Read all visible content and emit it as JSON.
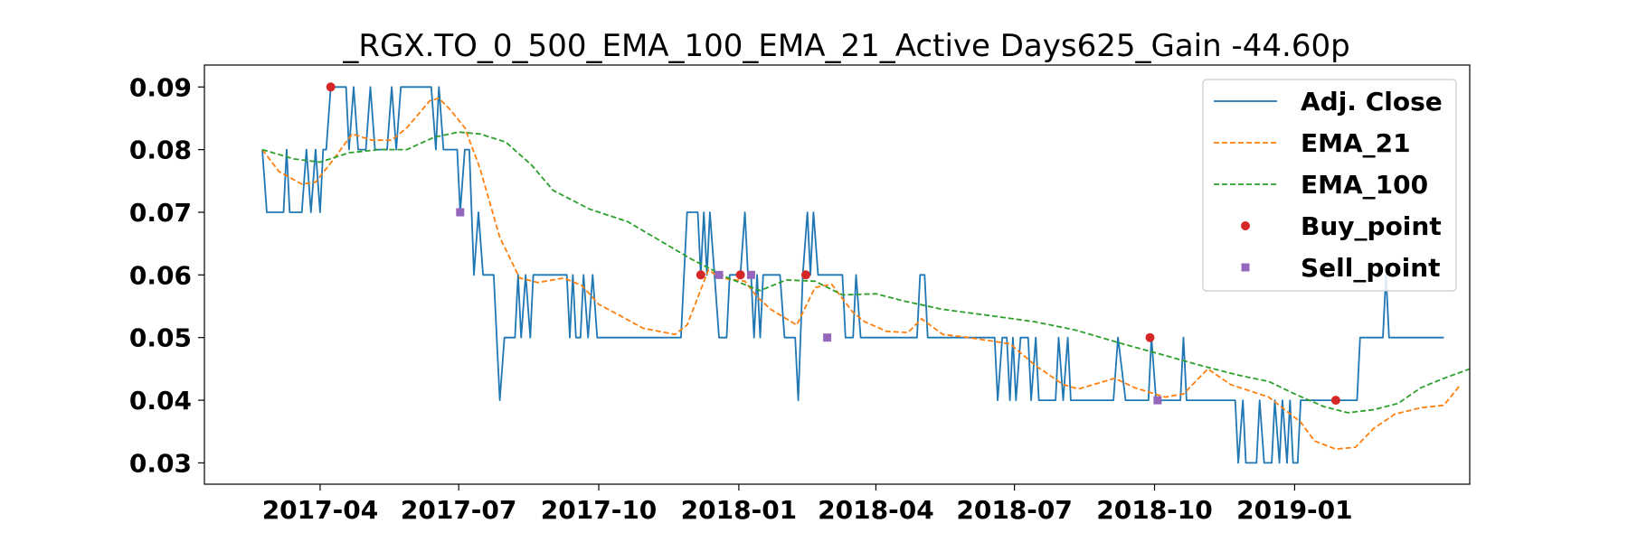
{
  "chart_data": {
    "type": "line",
    "title": "_RGX.TO_0_500_EMA_100_EMA_21_Active Days625_Gain -44.60p",
    "xlabel": "",
    "ylabel": "",
    "x_axis_type": "date",
    "xlim": [
      "2017-01-15",
      "2019-04-26"
    ],
    "ylim": [
      0.0266,
      0.0935
    ],
    "x_ticks": [
      "2017-04",
      "2017-07",
      "2017-10",
      "2018-01",
      "2018-04",
      "2018-07",
      "2018-10",
      "2019-01"
    ],
    "y_ticks": [
      0.03,
      0.04,
      0.05,
      0.06,
      0.07,
      0.08,
      0.09
    ],
    "y_tick_labels": [
      "0.03",
      "0.04",
      "0.05",
      "0.06",
      "0.07",
      "0.08",
      "0.09"
    ],
    "grid": false,
    "legend_position": "top-right",
    "colors": {
      "adj_close": "#1f77b4",
      "ema_21": "#ff7f0e",
      "ema_100": "#2ca02c",
      "buy_point": "#d62728",
      "sell_point": "#9467bd"
    },
    "series": [
      {
        "name": "Adj. Close",
        "style": "solid",
        "points": [
          [
            "2017-02-22",
            0.08
          ],
          [
            "2017-02-25",
            0.07
          ],
          [
            "2017-03-08",
            0.07
          ],
          [
            "2017-03-10",
            0.08
          ],
          [
            "2017-03-12",
            0.07
          ],
          [
            "2017-03-20",
            0.07
          ],
          [
            "2017-03-23",
            0.08
          ],
          [
            "2017-03-26",
            0.07
          ],
          [
            "2017-03-29",
            0.08
          ],
          [
            "2017-04-01",
            0.07
          ],
          [
            "2017-04-03",
            0.08
          ],
          [
            "2017-04-05",
            0.08
          ],
          [
            "2017-04-08",
            0.09
          ],
          [
            "2017-04-18",
            0.09
          ],
          [
            "2017-04-20",
            0.08
          ],
          [
            "2017-04-23",
            0.09
          ],
          [
            "2017-04-26",
            0.08
          ],
          [
            "2017-05-01",
            0.08
          ],
          [
            "2017-05-04",
            0.09
          ],
          [
            "2017-05-07",
            0.08
          ],
          [
            "2017-05-15",
            0.08
          ],
          [
            "2017-05-18",
            0.09
          ],
          [
            "2017-05-21",
            0.08
          ],
          [
            "2017-05-24",
            0.09
          ],
          [
            "2017-06-13",
            0.09
          ],
          [
            "2017-06-16",
            0.08
          ],
          [
            "2017-06-18",
            0.09
          ],
          [
            "2017-06-21",
            0.08
          ],
          [
            "2017-06-30",
            0.08
          ],
          [
            "2017-07-02",
            0.07
          ],
          [
            "2017-07-05",
            0.08
          ],
          [
            "2017-07-08",
            0.08
          ],
          [
            "2017-07-11",
            0.06
          ],
          [
            "2017-07-14",
            0.07
          ],
          [
            "2017-07-17",
            0.06
          ],
          [
            "2017-07-24",
            0.06
          ],
          [
            "2017-07-26",
            0.05
          ],
          [
            "2017-07-28",
            0.04
          ],
          [
            "2017-07-31",
            0.05
          ],
          [
            "2017-08-07",
            0.05
          ],
          [
            "2017-08-09",
            0.06
          ],
          [
            "2017-08-11",
            0.05
          ],
          [
            "2017-08-14",
            0.06
          ],
          [
            "2017-08-17",
            0.05
          ],
          [
            "2017-08-19",
            0.06
          ],
          [
            "2017-09-10",
            0.06
          ],
          [
            "2017-09-12",
            0.05
          ],
          [
            "2017-09-14",
            0.06
          ],
          [
            "2017-09-16",
            0.05
          ],
          [
            "2017-09-19",
            0.05
          ],
          [
            "2017-09-21",
            0.06
          ],
          [
            "2017-09-24",
            0.05
          ],
          [
            "2017-09-27",
            0.06
          ],
          [
            "2017-09-30",
            0.05
          ],
          [
            "2017-11-24",
            0.05
          ],
          [
            "2017-11-28",
            0.07
          ],
          [
            "2017-12-05",
            0.07
          ],
          [
            "2017-12-07",
            0.06
          ],
          [
            "2017-12-09",
            0.07
          ],
          [
            "2017-12-11",
            0.06
          ],
          [
            "2017-12-13",
            0.07
          ],
          [
            "2017-12-16",
            0.06
          ],
          [
            "2017-12-19",
            0.05
          ],
          [
            "2017-12-24",
            0.05
          ],
          [
            "2017-12-26",
            0.06
          ],
          [
            "2018-01-02",
            0.06
          ],
          [
            "2018-01-05",
            0.07
          ],
          [
            "2018-01-07",
            0.06
          ],
          [
            "2018-01-09",
            0.06
          ],
          [
            "2018-01-11",
            0.05
          ],
          [
            "2018-01-13",
            0.06
          ],
          [
            "2018-01-15",
            0.05
          ],
          [
            "2018-01-17",
            0.06
          ],
          [
            "2018-01-28",
            0.06
          ],
          [
            "2018-01-31",
            0.05
          ],
          [
            "2018-02-07",
            0.05
          ],
          [
            "2018-02-09",
            0.04
          ],
          [
            "2018-02-12",
            0.06
          ],
          [
            "2018-02-15",
            0.07
          ],
          [
            "2018-02-17",
            0.06
          ],
          [
            "2018-02-19",
            0.07
          ],
          [
            "2018-02-22",
            0.06
          ],
          [
            "2018-03-10",
            0.06
          ],
          [
            "2018-03-12",
            0.05
          ],
          [
            "2018-03-17",
            0.05
          ],
          [
            "2018-03-19",
            0.06
          ],
          [
            "2018-03-22",
            0.05
          ],
          [
            "2018-04-28",
            0.05
          ],
          [
            "2018-04-30",
            0.06
          ],
          [
            "2018-05-03",
            0.06
          ],
          [
            "2018-05-05",
            0.05
          ],
          [
            "2018-06-18",
            0.05
          ],
          [
            "2018-06-20",
            0.04
          ],
          [
            "2018-06-23",
            0.05
          ],
          [
            "2018-06-26",
            0.05
          ],
          [
            "2018-06-28",
            0.04
          ],
          [
            "2018-06-30",
            0.05
          ],
          [
            "2018-07-02",
            0.04
          ],
          [
            "2018-07-05",
            0.05
          ],
          [
            "2018-07-10",
            0.05
          ],
          [
            "2018-07-12",
            0.04
          ],
          [
            "2018-07-15",
            0.05
          ],
          [
            "2018-07-17",
            0.04
          ],
          [
            "2018-07-28",
            0.04
          ],
          [
            "2018-07-30",
            0.05
          ],
          [
            "2018-08-02",
            0.04
          ],
          [
            "2018-08-05",
            0.05
          ],
          [
            "2018-08-07",
            0.04
          ],
          [
            "2018-09-04",
            0.04
          ],
          [
            "2018-09-07",
            0.05
          ],
          [
            "2018-09-12",
            0.04
          ],
          [
            "2018-09-27",
            0.04
          ],
          [
            "2018-09-29",
            0.05
          ],
          [
            "2018-10-02",
            0.04
          ],
          [
            "2018-10-18",
            0.04
          ],
          [
            "2018-10-20",
            0.05
          ],
          [
            "2018-10-22",
            0.04
          ],
          [
            "2018-11-23",
            0.04
          ],
          [
            "2018-11-25",
            0.03
          ],
          [
            "2018-11-28",
            0.04
          ],
          [
            "2018-11-30",
            0.03
          ],
          [
            "2018-12-07",
            0.03
          ],
          [
            "2018-12-09",
            0.04
          ],
          [
            "2018-12-12",
            0.03
          ],
          [
            "2018-12-17",
            0.03
          ],
          [
            "2018-12-19",
            0.04
          ],
          [
            "2018-12-22",
            0.03
          ],
          [
            "2018-12-24",
            0.04
          ],
          [
            "2018-12-27",
            0.03
          ],
          [
            "2018-12-29",
            0.04
          ],
          [
            "2018-12-31",
            0.03
          ],
          [
            "2019-01-03",
            0.03
          ],
          [
            "2019-01-05",
            0.04
          ],
          [
            "2019-02-11",
            0.04
          ],
          [
            "2019-02-13",
            0.05
          ],
          [
            "2019-02-28",
            0.05
          ],
          [
            "2019-03-02",
            0.06
          ],
          [
            "2019-03-04",
            0.05
          ],
          [
            "2019-04-09",
            0.05
          ]
        ]
      },
      {
        "name": "EMA_21",
        "style": "dashed",
        "points": [
          [
            "2017-02-22",
            0.08
          ],
          [
            "2017-03-05",
            0.0765
          ],
          [
            "2017-03-20",
            0.0745
          ],
          [
            "2017-03-29",
            0.0748
          ],
          [
            "2017-04-10",
            0.0785
          ],
          [
            "2017-04-22",
            0.0825
          ],
          [
            "2017-05-05",
            0.0815
          ],
          [
            "2017-05-18",
            0.0815
          ],
          [
            "2017-05-28",
            0.0835
          ],
          [
            "2017-06-12",
            0.0878
          ],
          [
            "2017-06-18",
            0.0882
          ],
          [
            "2017-06-25",
            0.0865
          ],
          [
            "2017-07-05",
            0.0835
          ],
          [
            "2017-07-15",
            0.077
          ],
          [
            "2017-07-28",
            0.066
          ],
          [
            "2017-08-10",
            0.0595
          ],
          [
            "2017-08-22",
            0.0588
          ],
          [
            "2017-09-08",
            0.0595
          ],
          [
            "2017-09-20",
            0.0583
          ],
          [
            "2017-10-01",
            0.0553
          ],
          [
            "2017-10-15",
            0.0535
          ],
          [
            "2017-10-30",
            0.0515
          ],
          [
            "2017-11-20",
            0.0505
          ],
          [
            "2017-11-28",
            0.052
          ],
          [
            "2017-12-06",
            0.057
          ],
          [
            "2017-12-12",
            0.0608
          ],
          [
            "2017-12-20",
            0.0595
          ],
          [
            "2018-01-05",
            0.059
          ],
          [
            "2018-01-13",
            0.0565
          ],
          [
            "2018-01-22",
            0.0545
          ],
          [
            "2018-02-08",
            0.052
          ],
          [
            "2018-02-20",
            0.058
          ],
          [
            "2018-03-03",
            0.0585
          ],
          [
            "2018-03-17",
            0.054
          ],
          [
            "2018-03-25",
            0.0525
          ],
          [
            "2018-04-08",
            0.051
          ],
          [
            "2018-04-22",
            0.0508
          ],
          [
            "2018-05-01",
            0.053
          ],
          [
            "2018-05-15",
            0.0505
          ],
          [
            "2018-06-01",
            0.05
          ],
          [
            "2018-06-28",
            0.049
          ],
          [
            "2018-07-15",
            0.0455
          ],
          [
            "2018-08-02",
            0.0425
          ],
          [
            "2018-08-12",
            0.0418
          ],
          [
            "2018-09-05",
            0.0435
          ],
          [
            "2018-09-18",
            0.042
          ],
          [
            "2018-10-08",
            0.0405
          ],
          [
            "2018-10-20",
            0.041
          ],
          [
            "2018-11-05",
            0.045
          ],
          [
            "2018-11-20",
            0.0425
          ],
          [
            "2018-12-15",
            0.0405
          ],
          [
            "2019-01-05",
            0.0365
          ],
          [
            "2019-01-14",
            0.0335
          ],
          [
            "2019-01-28",
            0.0322
          ],
          [
            "2019-02-10",
            0.0325
          ],
          [
            "2019-02-22",
            0.0355
          ],
          [
            "2019-03-08",
            0.0378
          ],
          [
            "2019-03-25",
            0.0388
          ],
          [
            "2019-04-09",
            0.0392
          ],
          [
            "2019-04-20",
            0.0425
          ]
        ]
      },
      {
        "name": "EMA_100",
        "style": "dashed",
        "points": [
          [
            "2017-02-22",
            0.08
          ],
          [
            "2017-03-15",
            0.0785
          ],
          [
            "2017-04-01",
            0.078
          ],
          [
            "2017-04-20",
            0.0795
          ],
          [
            "2017-05-10",
            0.08
          ],
          [
            "2017-05-28",
            0.08
          ],
          [
            "2017-06-15",
            0.082
          ],
          [
            "2017-07-01",
            0.0828
          ],
          [
            "2017-07-15",
            0.0825
          ],
          [
            "2017-08-01",
            0.0812
          ],
          [
            "2017-08-18",
            0.0775
          ],
          [
            "2017-09-01",
            0.0735
          ],
          [
            "2017-09-25",
            0.0705
          ],
          [
            "2017-10-20",
            0.0685
          ],
          [
            "2017-11-10",
            0.0655
          ],
          [
            "2017-12-01",
            0.0625
          ],
          [
            "2017-12-25",
            0.0595
          ],
          [
            "2018-01-15",
            0.0575
          ],
          [
            "2018-02-01",
            0.0592
          ],
          [
            "2018-02-20",
            0.059
          ],
          [
            "2018-03-10",
            0.0568
          ],
          [
            "2018-04-01",
            0.057
          ],
          [
            "2018-04-20",
            0.0558
          ],
          [
            "2018-05-15",
            0.0545
          ],
          [
            "2018-06-15",
            0.0535
          ],
          [
            "2018-07-15",
            0.0525
          ],
          [
            "2018-08-10",
            0.0512
          ],
          [
            "2018-09-10",
            0.049
          ],
          [
            "2018-10-10",
            0.047
          ],
          [
            "2018-11-01",
            0.0455
          ],
          [
            "2018-11-25",
            0.044
          ],
          [
            "2018-12-15",
            0.043
          ],
          [
            "2019-01-01",
            0.041
          ],
          [
            "2019-01-20",
            0.039
          ],
          [
            "2019-02-05",
            0.038
          ],
          [
            "2019-02-22",
            0.0385
          ],
          [
            "2019-03-10",
            0.0395
          ],
          [
            "2019-03-25",
            0.042
          ],
          [
            "2019-04-09",
            0.0435
          ],
          [
            "2019-04-26",
            0.045
          ]
        ]
      }
    ],
    "markers": [
      {
        "name": "Buy_point",
        "shape": "circle",
        "points": [
          [
            "2017-04-08",
            0.09
          ],
          [
            "2017-12-07",
            0.06
          ],
          [
            "2018-01-02",
            0.06
          ],
          [
            "2018-02-14",
            0.06
          ],
          [
            "2018-09-28",
            0.05
          ],
          [
            "2019-01-28",
            0.04
          ]
        ]
      },
      {
        "name": "Sell_point",
        "shape": "square",
        "points": [
          [
            "2017-07-02",
            0.07
          ],
          [
            "2017-12-19",
            0.06
          ],
          [
            "2018-01-09",
            0.06
          ],
          [
            "2018-02-28",
            0.05
          ],
          [
            "2018-10-03",
            0.04
          ]
        ]
      }
    ]
  }
}
